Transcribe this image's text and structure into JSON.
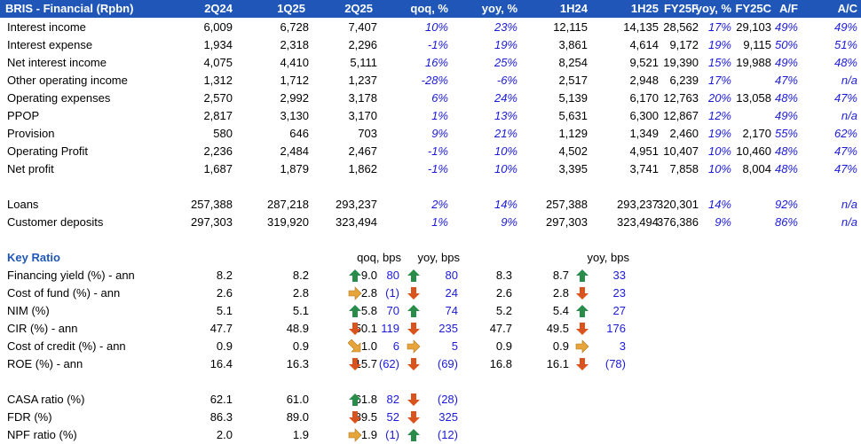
{
  "header": [
    "BRIS - Financial (Rpbn)",
    "2Q24",
    "1Q25",
    "2Q25",
    "qoq, %",
    "yoy, %",
    "1H24",
    "1H25",
    "yoy, %",
    "FY25F",
    "FY25C",
    "A/F",
    "A/C"
  ],
  "financial_rows": [
    {
      "label": "Interest income",
      "v": [
        "6,009",
        "6,728",
        "7,407",
        "10%",
        "23%",
        "12,115",
        "14,135",
        "17%",
        "28,562",
        "29,103",
        "49%",
        "49%"
      ]
    },
    {
      "label": "Interest expense",
      "v": [
        "1,934",
        "2,318",
        "2,296",
        "-1%",
        "19%",
        "3,861",
        "4,614",
        "19%",
        "9,172",
        "9,115",
        "50%",
        "51%"
      ]
    },
    {
      "label": "Net interest income",
      "v": [
        "4,075",
        "4,410",
        "5,111",
        "16%",
        "25%",
        "8,254",
        "9,521",
        "15%",
        "19,390",
        "19,988",
        "49%",
        "48%"
      ]
    },
    {
      "label": "Other operating income",
      "v": [
        "1,312",
        "1,712",
        "1,237",
        "-28%",
        "-6%",
        "2,517",
        "2,948",
        "17%",
        "6,239",
        "",
        "47%",
        "n/a"
      ]
    },
    {
      "label": "Operating expenses",
      "v": [
        "2,570",
        "2,992",
        "3,178",
        "6%",
        "24%",
        "5,139",
        "6,170",
        "20%",
        "12,763",
        "13,058",
        "48%",
        "47%"
      ]
    },
    {
      "label": "PPOP",
      "v": [
        "2,817",
        "3,130",
        "3,170",
        "1%",
        "13%",
        "5,631",
        "6,300",
        "12%",
        "12,867",
        "",
        "49%",
        "n/a"
      ]
    },
    {
      "label": "Provision",
      "v": [
        "580",
        "646",
        "703",
        "9%",
        "21%",
        "1,129",
        "1,349",
        "19%",
        "2,460",
        "2,170",
        "55%",
        "62%"
      ]
    },
    {
      "label": "Operating Profit",
      "v": [
        "2,236",
        "2,484",
        "2,467",
        "-1%",
        "10%",
        "4,502",
        "4,951",
        "10%",
        "10,407",
        "10,460",
        "48%",
        "47%"
      ]
    },
    {
      "label": "Net profit",
      "v": [
        "1,687",
        "1,879",
        "1,862",
        "-1%",
        "10%",
        "3,395",
        "3,741",
        "10%",
        "7,858",
        "8,004",
        "48%",
        "47%"
      ]
    }
  ],
  "balance_rows": [
    {
      "label": "Loans",
      "v": [
        "257,388",
        "287,218",
        "293,237",
        "2%",
        "14%",
        "257,388",
        "293,237",
        "14%",
        "320,301",
        "",
        "92%",
        "n/a"
      ]
    },
    {
      "label": "Customer deposits",
      "v": [
        "297,303",
        "319,920",
        "323,494",
        "1%",
        "9%",
        "297,303",
        "323,494",
        "9%",
        "376,386",
        "",
        "86%",
        "n/a"
      ]
    }
  ],
  "key_ratio": {
    "title": "Key Ratio",
    "qoq_header": "qoq, bps",
    "yoy_header": "yoy, bps",
    "yoy_header_2": "yoy, bps",
    "rows": [
      {
        "label": "Financing yield (%) - ann",
        "q2q24": "8.2",
        "q1q25": "8.2",
        "q2q25": "9.0",
        "qoq_arrow": "up",
        "qoq": "80",
        "yoy_arrow": "up",
        "yoy": "80",
        "h1h24": "8.3",
        "h1h25": "8.7",
        "h_arrow": "up",
        "h_yoy": "33"
      },
      {
        "label": "Cost of fund (%) - ann",
        "q2q24": "2.6",
        "q1q25": "2.8",
        "q2q25": "2.8",
        "qoq_arrow": "flat",
        "qoq": "(1)",
        "yoy_arrow": "down",
        "yoy": "24",
        "h1h24": "2.6",
        "h1h25": "2.8",
        "h_arrow": "down",
        "h_yoy": "23"
      },
      {
        "label": "NIM (%)",
        "q2q24": "5.1",
        "q1q25": "5.1",
        "q2q25": "5.8",
        "qoq_arrow": "up",
        "qoq": "70",
        "yoy_arrow": "up",
        "yoy": "74",
        "h1h24": "5.2",
        "h1h25": "5.4",
        "h_arrow": "up",
        "h_yoy": "27"
      },
      {
        "label": "CIR (%) - ann",
        "q2q24": "47.7",
        "q1q25": "48.9",
        "q2q25": "50.1",
        "qoq_arrow": "down",
        "qoq": "119",
        "yoy_arrow": "down",
        "yoy": "235",
        "h1h24": "47.7",
        "h1h25": "49.5",
        "h_arrow": "down",
        "h_yoy": "176"
      },
      {
        "label": "Cost of credit (%) - ann",
        "q2q24": "0.9",
        "q1q25": "0.9",
        "q2q25": "1.0",
        "qoq_arrow": "flat-down",
        "qoq": "6",
        "yoy_arrow": "flat",
        "yoy": "5",
        "h1h24": "0.9",
        "h1h25": "0.9",
        "h_arrow": "flat",
        "h_yoy": "3"
      },
      {
        "label": "ROE (%) - ann",
        "q2q24": "16.4",
        "q1q25": "16.3",
        "q2q25": "15.7",
        "qoq_arrow": "down",
        "qoq": "(62)",
        "yoy_arrow": "down",
        "yoy": "(69)",
        "h1h24": "16.8",
        "h1h25": "16.1",
        "h_arrow": "down",
        "h_yoy": "(78)"
      }
    ],
    "rows2": [
      {
        "label": "CASA ratio (%)",
        "q2q24": "62.1",
        "q1q25": "61.0",
        "q2q25": "61.8",
        "qoq_arrow": "up",
        "qoq": "82",
        "yoy_arrow": "down",
        "yoy": "(28)"
      },
      {
        "label": "FDR (%)",
        "q2q24": "86.3",
        "q1q25": "89.0",
        "q2q25": "89.5",
        "qoq_arrow": "down",
        "qoq": "52",
        "yoy_arrow": "down",
        "yoy": "325"
      },
      {
        "label": "NPF ratio (%)",
        "q2q24": "2.0",
        "q1q25": "1.9",
        "q2q25": "1.9",
        "qoq_arrow": "flat",
        "qoq": "(1)",
        "yoy_arrow": "up",
        "yoy": "(12)"
      }
    ]
  },
  "colors": {
    "header_bg": "#1f56b8",
    "up": "#2a8c4a",
    "down": "#d9531e",
    "flat": "#e6a43a",
    "blue_text": "#1a1adc"
  }
}
